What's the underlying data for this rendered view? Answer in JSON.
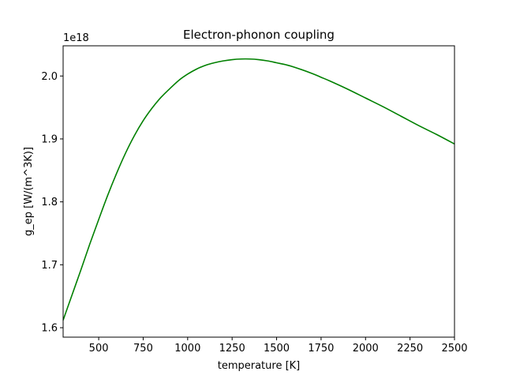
{
  "chart_data": {
    "type": "line",
    "title": "Electron-phonon coupling",
    "xlabel": "temperature [K]",
    "ylabel": "g_ep [W/(m^3K)]",
    "y_offset_label": "1e18",
    "xlim": [
      300,
      2500
    ],
    "ylim": [
      1.585,
      2.048
    ],
    "x_ticks": [
      500,
      750,
      1000,
      1250,
      1500,
      1750,
      2000,
      2250,
      2500
    ],
    "y_ticks": [
      1.6,
      1.7,
      1.8,
      1.9,
      2.0
    ],
    "y_tick_labels": [
      "1.6",
      "1.7",
      "1.8",
      "1.9",
      "2.0"
    ],
    "grid": false,
    "series": [
      {
        "color": "#008000",
        "x": [
          300,
          350,
          400,
          450,
          500,
          550,
          600,
          650,
          700,
          750,
          800,
          850,
          900,
          950,
          1000,
          1050,
          1100,
          1150,
          1200,
          1250,
          1300,
          1350,
          1400,
          1450,
          1500,
          1550,
          1600,
          1700,
          1750,
          1800,
          1900,
          2000,
          2100,
          2200,
          2300,
          2400,
          2500
        ],
        "y": [
          1.612,
          1.652,
          1.692,
          1.733,
          1.772,
          1.81,
          1.845,
          1.877,
          1.905,
          1.929,
          1.949,
          1.966,
          1.98,
          1.993,
          2.003,
          2.011,
          2.017,
          2.021,
          2.024,
          2.026,
          2.027,
          2.027,
          2.026,
          2.024,
          2.021,
          2.018,
          2.014,
          2.004,
          1.998,
          1.992,
          1.979,
          1.965,
          1.951,
          1.936,
          1.921,
          1.907,
          1.892
        ]
      }
    ]
  }
}
